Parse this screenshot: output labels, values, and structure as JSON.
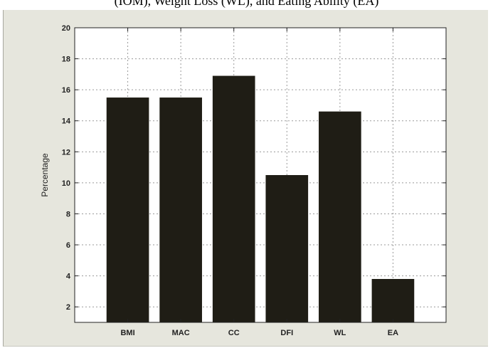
{
  "top_caption": "(IOM), Weight Loss (WL), and Eating Ability (EA)",
  "colors": {
    "figure_background": "#e6e6dd",
    "plot_background": "#ffffff",
    "bar_fill": "#1f1d15",
    "grid": "#9a9a9a",
    "axis": "#222222"
  },
  "chart_data": {
    "type": "bar",
    "title": "",
    "xlabel": "",
    "ylabel": "Percentage",
    "categories": [
      "BMI",
      "MAC",
      "CC",
      "DFI",
      "WL",
      "EA"
    ],
    "values": [
      15.5,
      15.5,
      16.9,
      10.5,
      14.6,
      3.8
    ],
    "ylim": [
      1,
      20
    ],
    "yticks": [
      2,
      4,
      6,
      8,
      10,
      12,
      14,
      16,
      18,
      20
    ],
    "grid": true,
    "legend": "none"
  }
}
